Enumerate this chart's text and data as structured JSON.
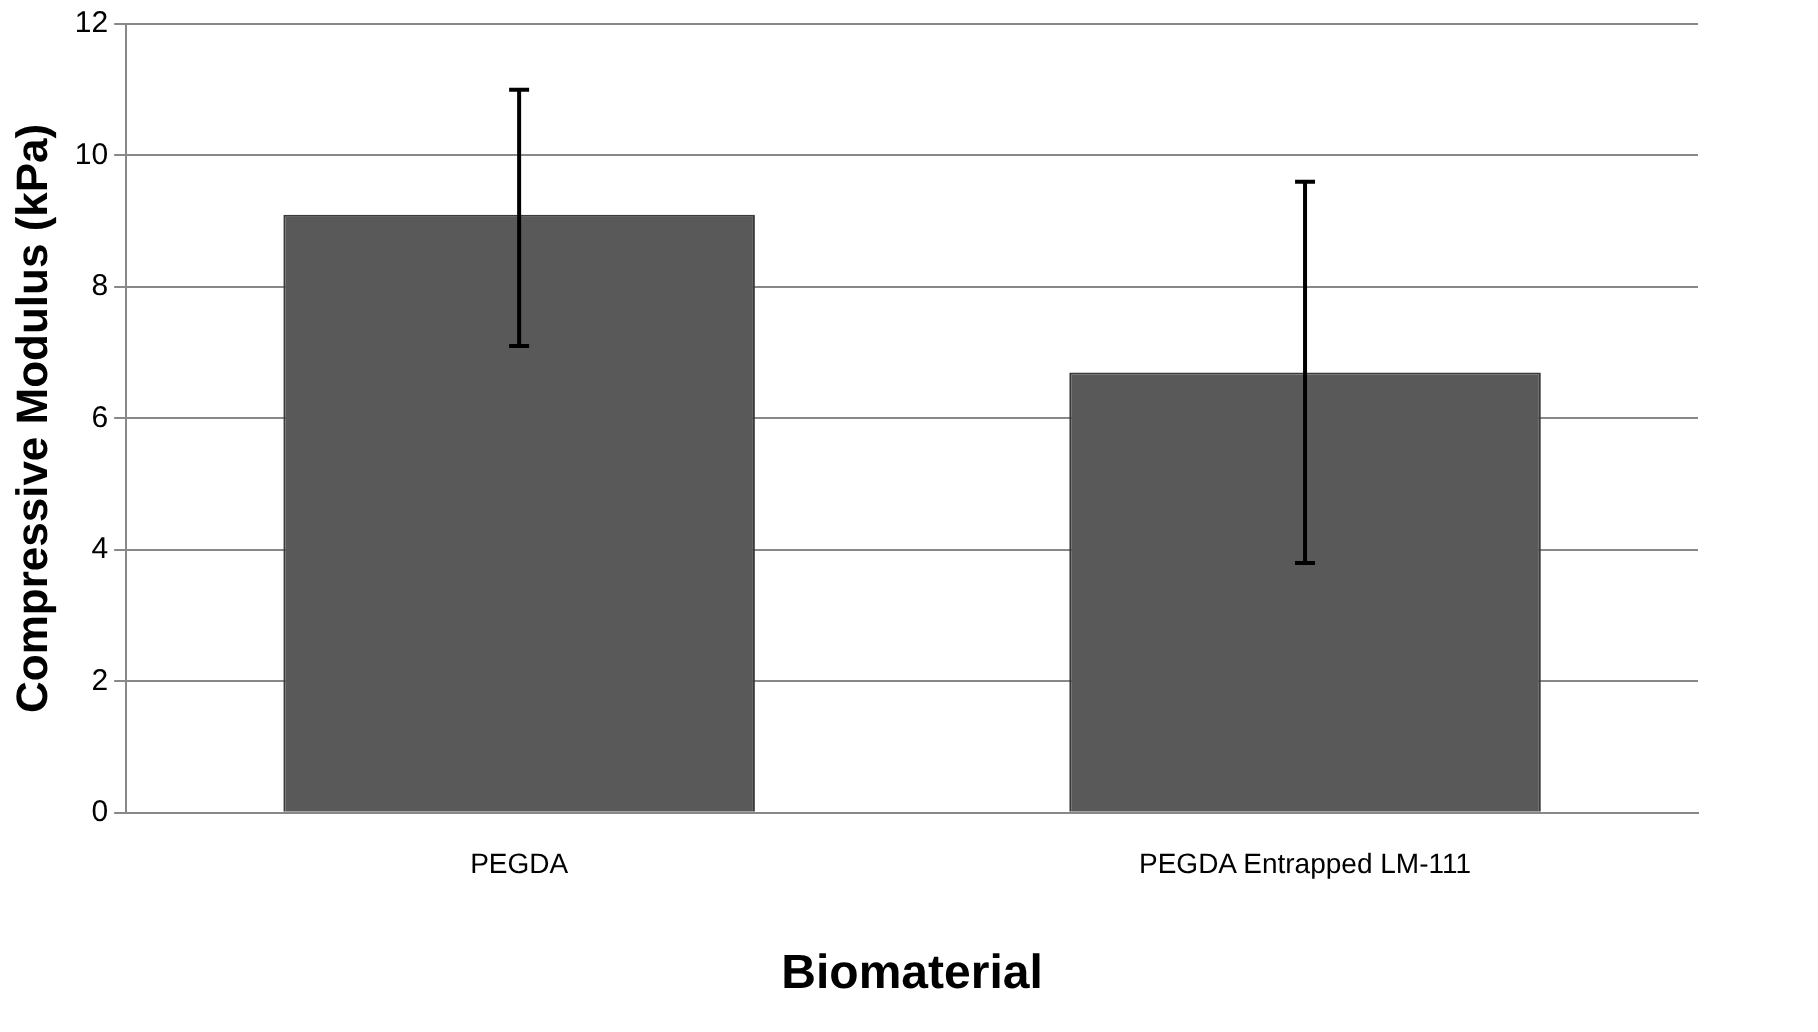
{
  "chart_data": {
    "type": "bar",
    "xlabel": "Biomaterial",
    "ylabel": "Compressive Modulus (kPa)",
    "categories": [
      "PEGDA",
      "PEGDA Entrapped LM-111"
    ],
    "values": [
      9.1,
      6.7
    ],
    "errors": [
      [
        7.1,
        11.0
      ],
      [
        3.8,
        9.6
      ]
    ],
    "color": "#595959",
    "ylim": [
      0,
      12
    ],
    "yticks": [
      0,
      2,
      4,
      6,
      8,
      10,
      12
    ],
    "grid": "y"
  }
}
